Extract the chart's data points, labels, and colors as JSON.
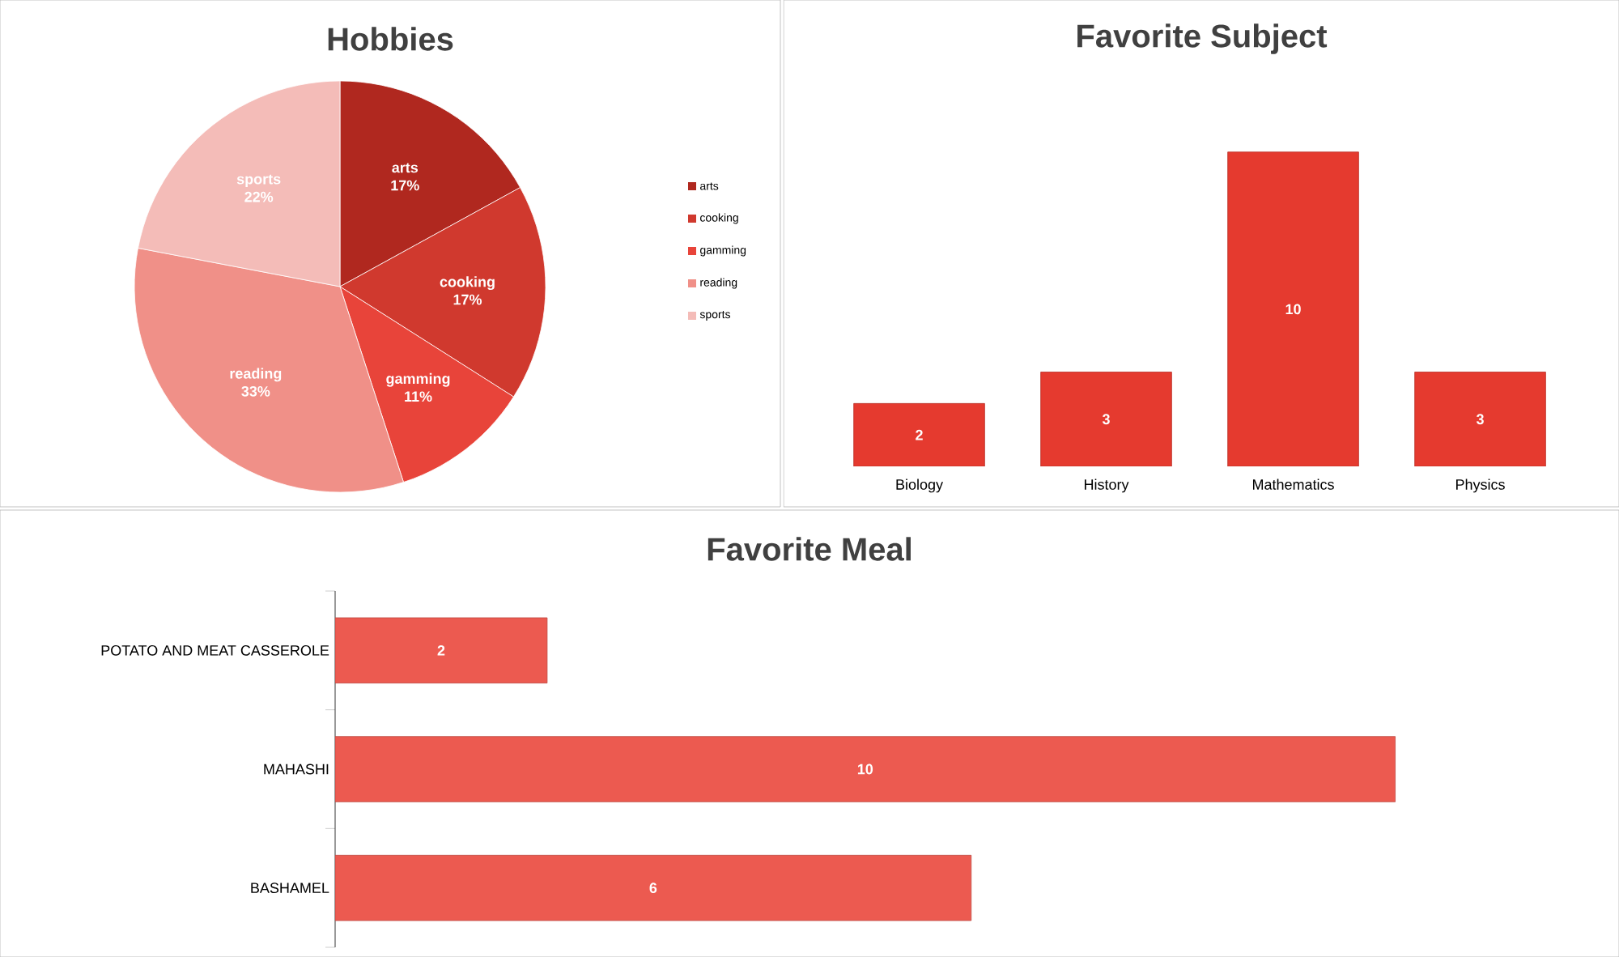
{
  "chart_data": [
    {
      "type": "pie",
      "title": "Hobbies",
      "categories": [
        "arts",
        "cooking",
        "gamming",
        "reading",
        "sports"
      ],
      "values": [
        17,
        17,
        11,
        33,
        22
      ],
      "colors": [
        "#b0281f",
        "#d0392e",
        "#e8443a",
        "#f09088",
        "#f4bcb8"
      ],
      "value_labels": [
        "17%",
        "17%",
        "11%",
        "33%",
        "22%"
      ],
      "legend": "right"
    },
    {
      "type": "bar",
      "title": "Favorite Subject",
      "categories": [
        "Biology",
        "History",
        "Mathematics",
        "Physics"
      ],
      "values": [
        2,
        3,
        10,
        3
      ],
      "color": "#e53a2f",
      "data_labels": true
    },
    {
      "type": "bar",
      "orientation": "horizontal",
      "title": "Favorite Meal",
      "categories": [
        "POTATO AND MEAT CASSEROLE",
        "MAHASHI",
        "BASHAMEL"
      ],
      "values": [
        2,
        10,
        6
      ],
      "color": "#ec5a50",
      "data_labels": true
    }
  ]
}
